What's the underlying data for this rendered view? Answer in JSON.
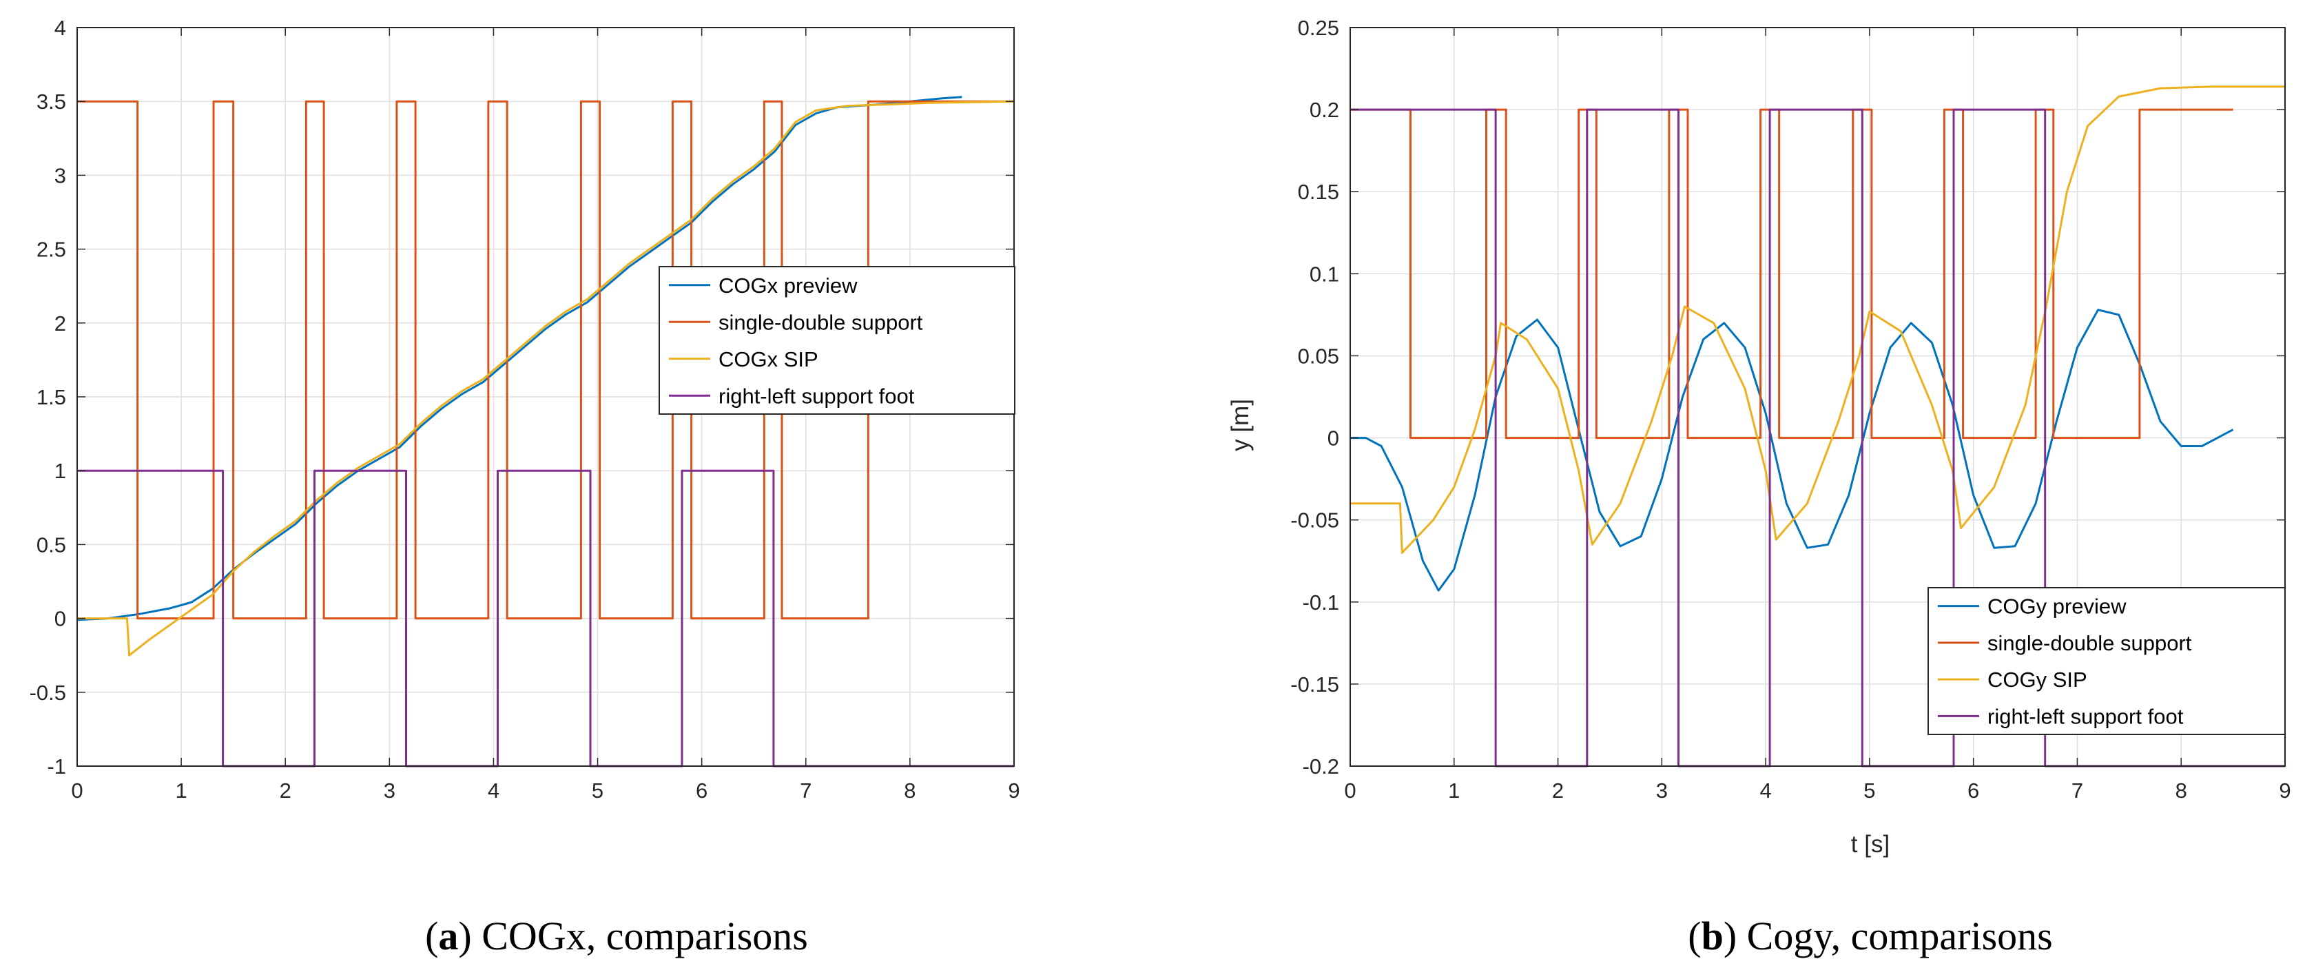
{
  "chart_data": [
    {
      "type": "line",
      "xlabel": "",
      "ylabel": "",
      "xlim": [
        0,
        9
      ],
      "ylim": [
        -1,
        4
      ],
      "xticks": [
        "0",
        "1",
        "2",
        "3",
        "4",
        "5",
        "6",
        "7",
        "8",
        "9"
      ],
      "yticks": [
        "-1",
        "-0.5",
        "0",
        "0.5",
        "1",
        "1.5",
        "2",
        "2.5",
        "3",
        "3.5",
        "4"
      ],
      "grid": true,
      "legend_position": "center-right",
      "caption": {
        "label": "a",
        "text": " COGx, comparisons"
      },
      "series": [
        {
          "name": "COGx preview",
          "color": "#0072BD",
          "points": [
            [
              0,
              -0.01
            ],
            [
              0.3,
              0
            ],
            [
              0.6,
              0.03
            ],
            [
              0.9,
              0.07
            ],
            [
              1.1,
              0.11
            ],
            [
              1.3,
              0.2
            ],
            [
              1.5,
              0.33
            ],
            [
              1.7,
              0.44
            ],
            [
              1.9,
              0.54
            ],
            [
              2.1,
              0.64
            ],
            [
              2.3,
              0.78
            ],
            [
              2.5,
              0.9
            ],
            [
              2.7,
              1.0
            ],
            [
              2.9,
              1.08
            ],
            [
              3.1,
              1.16
            ],
            [
              3.3,
              1.3
            ],
            [
              3.5,
              1.42
            ],
            [
              3.7,
              1.52
            ],
            [
              3.9,
              1.6
            ],
            [
              4.1,
              1.72
            ],
            [
              4.3,
              1.84
            ],
            [
              4.5,
              1.96
            ],
            [
              4.7,
              2.06
            ],
            [
              4.9,
              2.14
            ],
            [
              5.1,
              2.26
            ],
            [
              5.3,
              2.38
            ],
            [
              5.5,
              2.48
            ],
            [
              5.7,
              2.58
            ],
            [
              5.9,
              2.68
            ],
            [
              6.1,
              2.82
            ],
            [
              6.3,
              2.94
            ],
            [
              6.5,
              3.04
            ],
            [
              6.7,
              3.16
            ],
            [
              6.9,
              3.34
            ],
            [
              7.1,
              3.42
            ],
            [
              7.3,
              3.46
            ],
            [
              7.5,
              3.47
            ],
            [
              7.7,
              3.48
            ],
            [
              8.0,
              3.5
            ],
            [
              8.3,
              3.52
            ],
            [
              8.5,
              3.53
            ]
          ]
        },
        {
          "name": "single-double support",
          "color": "#D95319",
          "points": [
            [
              0,
              3.5
            ],
            [
              0.58,
              3.5
            ],
            [
              0.58,
              0
            ],
            [
              1.31,
              0
            ],
            [
              1.31,
              3.5
            ],
            [
              1.5,
              3.5
            ],
            [
              1.5,
              0
            ],
            [
              2.2,
              0
            ],
            [
              2.2,
              3.5
            ],
            [
              2.37,
              3.5
            ],
            [
              2.37,
              0
            ],
            [
              3.07,
              0
            ],
            [
              3.07,
              3.5
            ],
            [
              3.25,
              3.5
            ],
            [
              3.25,
              0
            ],
            [
              3.95,
              0
            ],
            [
              3.95,
              3.5
            ],
            [
              4.13,
              3.5
            ],
            [
              4.13,
              0
            ],
            [
              4.84,
              0
            ],
            [
              4.84,
              3.5
            ],
            [
              5.02,
              3.5
            ],
            [
              5.02,
              0
            ],
            [
              5.72,
              0
            ],
            [
              5.72,
              3.5
            ],
            [
              5.9,
              3.5
            ],
            [
              5.9,
              0
            ],
            [
              6.6,
              0
            ],
            [
              6.6,
              3.5
            ],
            [
              6.77,
              3.5
            ],
            [
              6.77,
              0
            ],
            [
              7.6,
              0
            ],
            [
              7.6,
              3.5
            ],
            [
              9,
              3.5
            ]
          ]
        },
        {
          "name": "COGx SIP",
          "color": "#EDB120",
          "points": [
            [
              0,
              0
            ],
            [
              0.48,
              0
            ],
            [
              0.5,
              -0.25
            ],
            [
              0.7,
              -0.14
            ],
            [
              0.9,
              -0.04
            ],
            [
              1.1,
              0.06
            ],
            [
              1.3,
              0.16
            ],
            [
              1.5,
              0.32
            ],
            [
              1.7,
              0.45
            ],
            [
              1.9,
              0.56
            ],
            [
              2.1,
              0.66
            ],
            [
              2.3,
              0.8
            ],
            [
              2.5,
              0.92
            ],
            [
              2.7,
              1.02
            ],
            [
              2.9,
              1.1
            ],
            [
              3.1,
              1.18
            ],
            [
              3.3,
              1.32
            ],
            [
              3.5,
              1.44
            ],
            [
              3.7,
              1.54
            ],
            [
              3.9,
              1.62
            ],
            [
              4.1,
              1.74
            ],
            [
              4.3,
              1.86
            ],
            [
              4.5,
              1.98
            ],
            [
              4.7,
              2.08
            ],
            [
              4.9,
              2.16
            ],
            [
              5.1,
              2.28
            ],
            [
              5.3,
              2.4
            ],
            [
              5.5,
              2.5
            ],
            [
              5.7,
              2.6
            ],
            [
              5.9,
              2.7
            ],
            [
              6.1,
              2.84
            ],
            [
              6.3,
              2.96
            ],
            [
              6.5,
              3.06
            ],
            [
              6.7,
              3.18
            ],
            [
              6.9,
              3.36
            ],
            [
              7.1,
              3.44
            ],
            [
              7.4,
              3.47
            ],
            [
              7.8,
              3.48
            ],
            [
              8.2,
              3.49
            ],
            [
              9,
              3.5
            ]
          ]
        },
        {
          "name": "right-left support foot",
          "color": "#7E2F8E",
          "points": [
            [
              0,
              1
            ],
            [
              1.4,
              1
            ],
            [
              1.4,
              -1
            ],
            [
              2.28,
              -1
            ],
            [
              2.28,
              1
            ],
            [
              3.16,
              1
            ],
            [
              3.16,
              -1
            ],
            [
              4.04,
              -1
            ],
            [
              4.04,
              1
            ],
            [
              4.93,
              1
            ],
            [
              4.93,
              -1
            ],
            [
              5.81,
              -1
            ],
            [
              5.81,
              1
            ],
            [
              6.69,
              1
            ],
            [
              6.69,
              -1
            ],
            [
              9,
              -1
            ]
          ]
        }
      ]
    },
    {
      "type": "line",
      "xlabel": "t [s]",
      "ylabel": "y [m]",
      "xlim": [
        0,
        9
      ],
      "ylim": [
        -0.2,
        0.25
      ],
      "xticks": [
        "0",
        "1",
        "2",
        "3",
        "4",
        "5",
        "6",
        "7",
        "8",
        "9"
      ],
      "yticks": [
        "-0.2",
        "-0.15",
        "-0.1",
        "-0.05",
        "0",
        "0.05",
        "0.1",
        "0.15",
        "0.2",
        "0.25"
      ],
      "grid": true,
      "legend_position": "bottom-right",
      "caption": {
        "label": "b",
        "text": " Cogy, comparisons"
      },
      "series": [
        {
          "name": "COGy preview",
          "color": "#0072BD",
          "points": [
            [
              0,
              0
            ],
            [
              0.15,
              0
            ],
            [
              0.3,
              -0.005
            ],
            [
              0.5,
              -0.03
            ],
            [
              0.7,
              -0.075
            ],
            [
              0.85,
              -0.093
            ],
            [
              1.0,
              -0.08
            ],
            [
              1.2,
              -0.035
            ],
            [
              1.4,
              0.025
            ],
            [
              1.6,
              0.062
            ],
            [
              1.8,
              0.072
            ],
            [
              2.0,
              0.055
            ],
            [
              2.2,
              0.005
            ],
            [
              2.4,
              -0.045
            ],
            [
              2.6,
              -0.066
            ],
            [
              2.8,
              -0.06
            ],
            [
              3.0,
              -0.025
            ],
            [
              3.2,
              0.025
            ],
            [
              3.4,
              0.06
            ],
            [
              3.6,
              0.07
            ],
            [
              3.8,
              0.055
            ],
            [
              4.0,
              0.015
            ],
            [
              4.2,
              -0.04
            ],
            [
              4.4,
              -0.067
            ],
            [
              4.6,
              -0.065
            ],
            [
              4.8,
              -0.035
            ],
            [
              5.0,
              0.015
            ],
            [
              5.2,
              0.055
            ],
            [
              5.4,
              0.07
            ],
            [
              5.6,
              0.058
            ],
            [
              5.8,
              0.02
            ],
            [
              6.0,
              -0.035
            ],
            [
              6.2,
              -0.067
            ],
            [
              6.4,
              -0.066
            ],
            [
              6.6,
              -0.04
            ],
            [
              6.8,
              0.01
            ],
            [
              7.0,
              0.055
            ],
            [
              7.2,
              0.078
            ],
            [
              7.4,
              0.075
            ],
            [
              7.6,
              0.045
            ],
            [
              7.8,
              0.01
            ],
            [
              8.0,
              -0.005
            ],
            [
              8.2,
              -0.005
            ],
            [
              8.5,
              0.005
            ]
          ]
        },
        {
          "name": "single-double support",
          "color": "#D95319",
          "points": [
            [
              0,
              0.2
            ],
            [
              0.58,
              0.2
            ],
            [
              0.58,
              0
            ],
            [
              1.31,
              0
            ],
            [
              1.31,
              0.2
            ],
            [
              1.5,
              0.2
            ],
            [
              1.5,
              0
            ],
            [
              2.2,
              0
            ],
            [
              2.2,
              0.2
            ],
            [
              2.37,
              0.2
            ],
            [
              2.37,
              0
            ],
            [
              3.07,
              0
            ],
            [
              3.07,
              0.2
            ],
            [
              3.25,
              0.2
            ],
            [
              3.25,
              0
            ],
            [
              3.95,
              0
            ],
            [
              3.95,
              0.2
            ],
            [
              4.13,
              0.2
            ],
            [
              4.13,
              0
            ],
            [
              4.84,
              0
            ],
            [
              4.84,
              0.2
            ],
            [
              5.02,
              0.2
            ],
            [
              5.02,
              0
            ],
            [
              5.72,
              0
            ],
            [
              5.72,
              0.2
            ],
            [
              5.9,
              0.2
            ],
            [
              5.9,
              0
            ],
            [
              6.6,
              0
            ],
            [
              6.6,
              0.2
            ],
            [
              6.77,
              0.2
            ],
            [
              6.77,
              0
            ],
            [
              7.6,
              0
            ],
            [
              7.6,
              0.2
            ],
            [
              8.5,
              0.2
            ]
          ]
        },
        {
          "name": "COGy SIP",
          "color": "#EDB120",
          "points": [
            [
              0,
              -0.04
            ],
            [
              0.48,
              -0.04
            ],
            [
              0.5,
              -0.07
            ],
            [
              0.8,
              -0.05
            ],
            [
              1.0,
              -0.03
            ],
            [
              1.2,
              0.005
            ],
            [
              1.4,
              0.05
            ],
            [
              1.45,
              0.07
            ],
            [
              1.7,
              0.06
            ],
            [
              2.0,
              0.03
            ],
            [
              2.2,
              -0.02
            ],
            [
              2.33,
              -0.065
            ],
            [
              2.6,
              -0.04
            ],
            [
              2.9,
              0.01
            ],
            [
              3.1,
              0.05
            ],
            [
              3.22,
              0.08
            ],
            [
              3.5,
              0.07
            ],
            [
              3.8,
              0.03
            ],
            [
              4.0,
              -0.02
            ],
            [
              4.1,
              -0.062
            ],
            [
              4.4,
              -0.04
            ],
            [
              4.7,
              0.01
            ],
            [
              4.9,
              0.05
            ],
            [
              5.0,
              0.077
            ],
            [
              5.3,
              0.065
            ],
            [
              5.6,
              0.02
            ],
            [
              5.8,
              -0.02
            ],
            [
              5.88,
              -0.055
            ],
            [
              6.2,
              -0.03
            ],
            [
              6.5,
              0.02
            ],
            [
              6.7,
              0.08
            ],
            [
              6.9,
              0.15
            ],
            [
              7.1,
              0.19
            ],
            [
              7.4,
              0.208
            ],
            [
              7.8,
              0.213
            ],
            [
              8.3,
              0.214
            ],
            [
              9,
              0.214
            ]
          ]
        },
        {
          "name": "right-left support foot",
          "color": "#7E2F8E",
          "points": [
            [
              0,
              0.2
            ],
            [
              1.4,
              0.2
            ],
            [
              1.4,
              -0.2
            ],
            [
              2.28,
              -0.2
            ],
            [
              2.28,
              0.2
            ],
            [
              3.16,
              0.2
            ],
            [
              3.16,
              -0.2
            ],
            [
              4.04,
              -0.2
            ],
            [
              4.04,
              0.2
            ],
            [
              4.93,
              0.2
            ],
            [
              4.93,
              -0.2
            ],
            [
              5.81,
              -0.2
            ],
            [
              5.81,
              0.2
            ],
            [
              6.69,
              0.2
            ],
            [
              6.69,
              -0.2
            ],
            [
              9,
              -0.2
            ]
          ]
        }
      ]
    }
  ]
}
